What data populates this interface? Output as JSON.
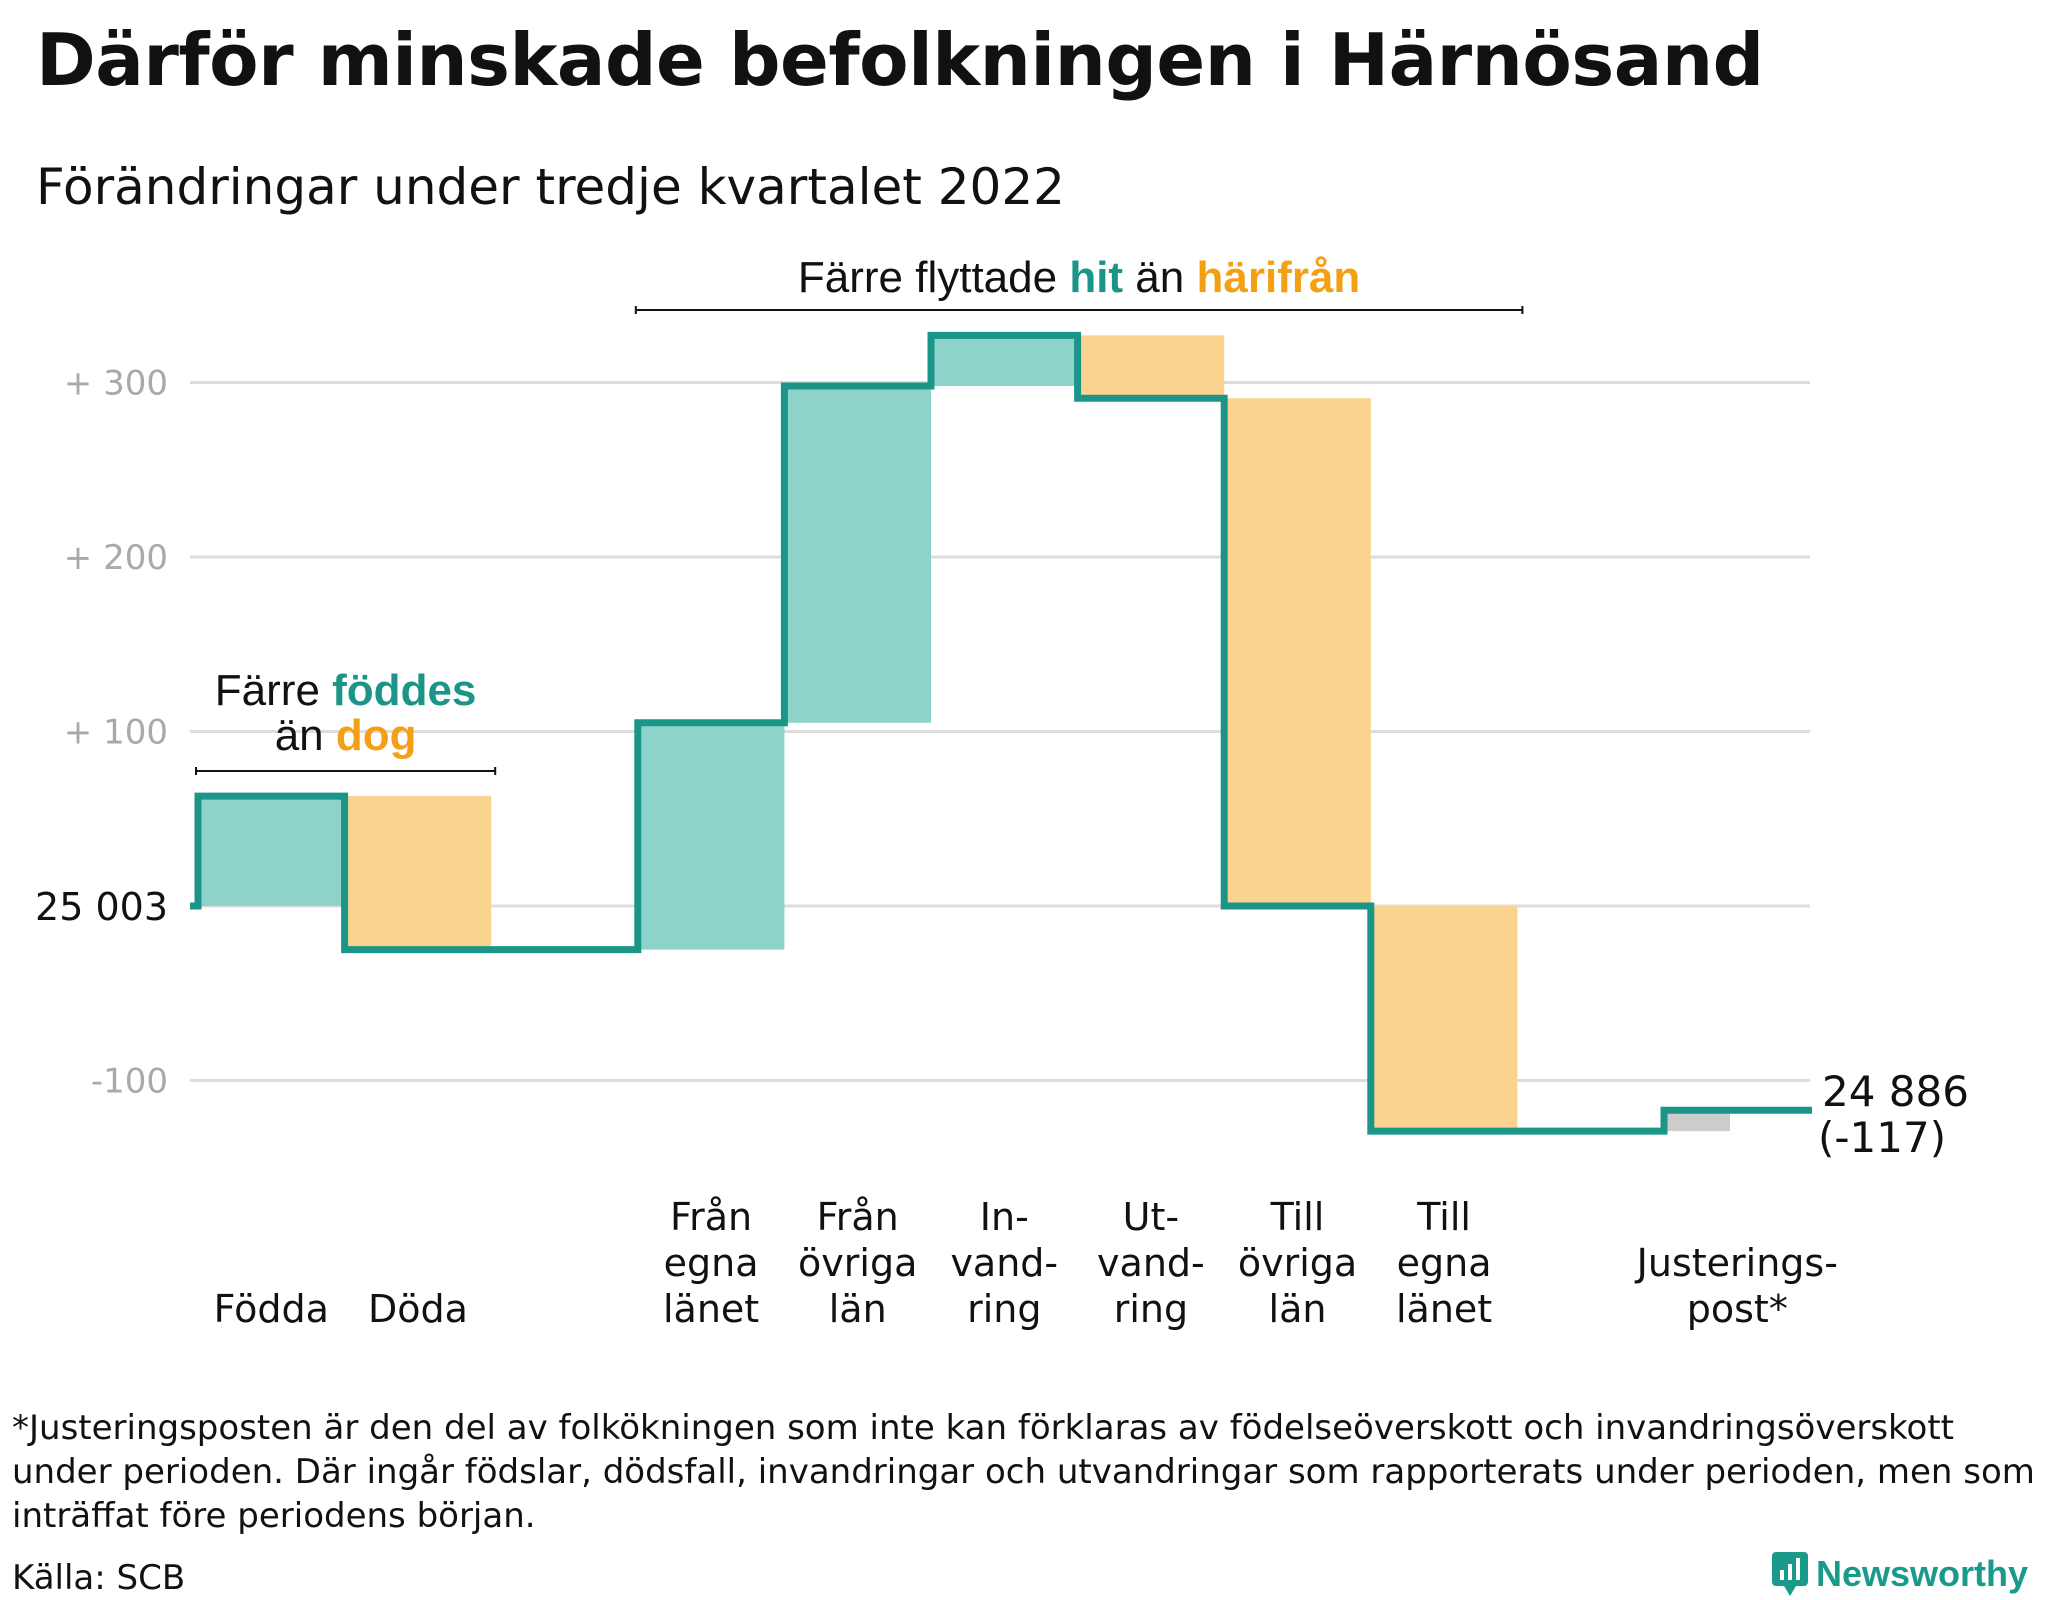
{
  "title": "Därför minskade befolkningen i Härnösand",
  "subtitle": "Förändringar under tredje kvartalet 2022",
  "colors": {
    "positive": "#8dd3ca",
    "negative": "#fad48e",
    "adjustment": "#cccccc",
    "line": "#1a9588",
    "teal_text": "#1a9588",
    "orange_text": "#f4a015",
    "grid": "#dddddd",
    "tick": "#a9a9a9"
  },
  "chart_data": {
    "type": "waterfall",
    "start_value": 25003,
    "start_label": "25 003",
    "end_value": 24886,
    "end_label": "24 886",
    "end_change_label": "(-117)",
    "yticks": [
      {
        "value": 300,
        "label": "+ 300"
      },
      {
        "value": 200,
        "label": "+ 200"
      },
      {
        "value": 100,
        "label": "+ 100"
      },
      {
        "value": -100,
        "label": "-100"
      }
    ],
    "ylim": [
      -170,
      350
    ],
    "steps": [
      {
        "label": [
          "Födda"
        ],
        "change": 63,
        "kind": "positive"
      },
      {
        "label": [
          "Döda"
        ],
        "change": -88,
        "kind": "negative"
      },
      {
        "label": [
          ""
        ],
        "change": 0,
        "kind": "none"
      },
      {
        "label": [
          "Från",
          "egna",
          "länet"
        ],
        "change": 130,
        "kind": "positive"
      },
      {
        "label": [
          "Från",
          "övriga",
          "län"
        ],
        "change": 193,
        "kind": "positive"
      },
      {
        "label": [
          "In-",
          "vand-",
          "ring"
        ],
        "change": 29,
        "kind": "positive"
      },
      {
        "label": [
          "Ut-",
          "vand-",
          "ring"
        ],
        "change": -36,
        "kind": "negative"
      },
      {
        "label": [
          "Till",
          "övriga",
          "län"
        ],
        "change": -291,
        "kind": "negative"
      },
      {
        "label": [
          "Till",
          "egna",
          "länet"
        ],
        "change": -129,
        "kind": "negative"
      },
      {
        "label": [
          ""
        ],
        "change": 0,
        "kind": "none"
      },
      {
        "label": [
          "Justerings-",
          "post*"
        ],
        "change": 12,
        "kind": "adjustment"
      }
    ],
    "annotations": [
      {
        "parts": [
          [
            "Färre ",
            "black"
          ],
          [
            "föddes",
            "teal"
          ]
        ],
        "parts2": [
          [
            "än ",
            "black"
          ],
          [
            "dog",
            "orange"
          ]
        ],
        "from_step": 0,
        "to_step": 1
      },
      {
        "parts": [
          [
            "Färre flyttade ",
            "black"
          ],
          [
            "hit",
            "teal"
          ],
          [
            " än ",
            "black"
          ],
          [
            "härifrån",
            "orange"
          ]
        ],
        "from_step": 3,
        "to_step": 8
      }
    ]
  },
  "footnote": "*Justeringsposten är den del av folkökningen som inte kan förklaras av födelseöverskott och invandringsöverskott under perioden. Där ingår födslar, dödsfall, invandringar och utvandringar som rapporterats under perioden, men som inträffat före periodens början.",
  "source": "Källa: SCB",
  "brand": {
    "name": "Newsworthy",
    "icon": "newsworthy-chart-icon"
  }
}
